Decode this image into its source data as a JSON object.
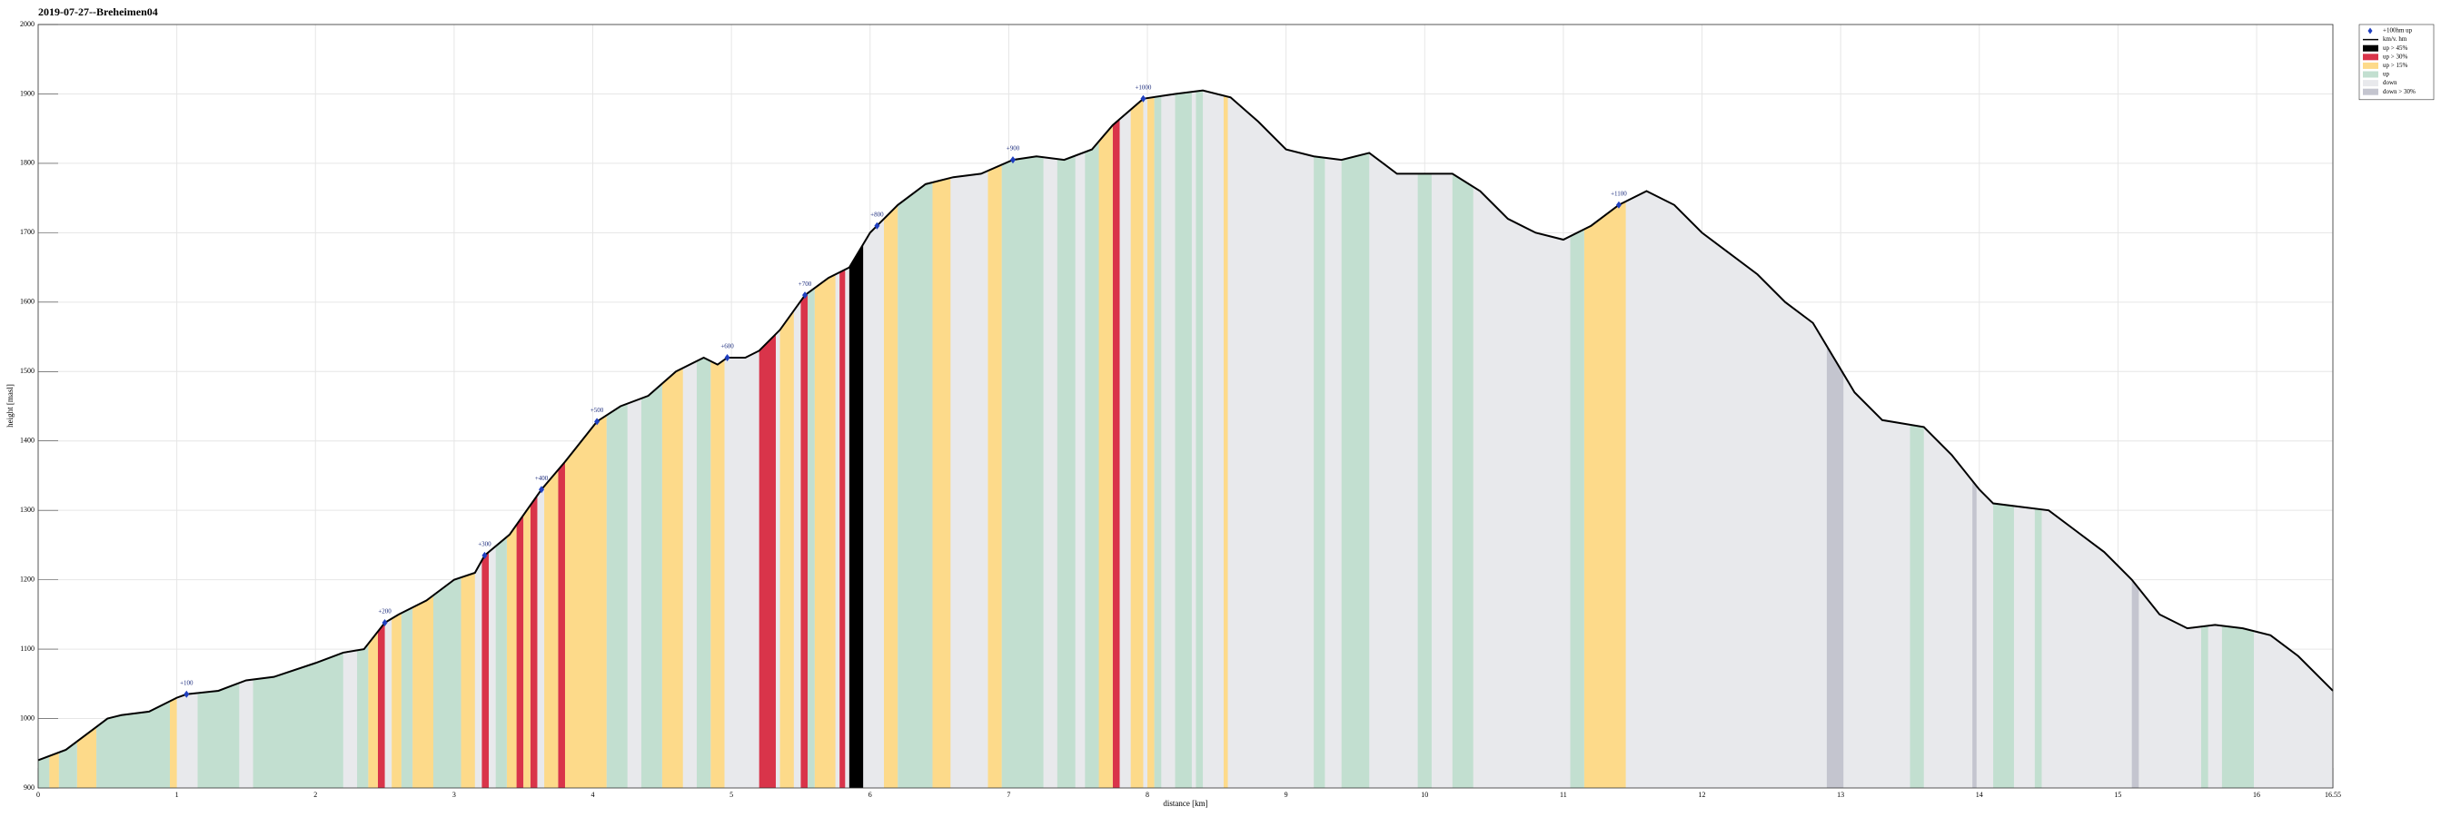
{
  "chart_data": {
    "type": "area",
    "title": "2019-07-27--Breheimen04",
    "x_label": "distance [km]",
    "y_label": "height [masl]",
    "xlim": [
      0,
      16.55
    ],
    "ylim": [
      900,
      2000
    ],
    "xticks": [
      0,
      1,
      2,
      3,
      4,
      5,
      6,
      7,
      8,
      9,
      10,
      11,
      12,
      13,
      14,
      15,
      16,
      16.55
    ],
    "yticks": [
      900,
      1000,
      1100,
      1200,
      1300,
      1400,
      1500,
      1600,
      1700,
      1800,
      1900,
      2000
    ],
    "grid": true,
    "legend_position": "upper right",
    "profile": {
      "name": "km/v. hm",
      "color": "#000000",
      "x": [
        0,
        0.2,
        0.4,
        0.5,
        0.6,
        0.8,
        1.0,
        1.07,
        1.3,
        1.5,
        1.7,
        2.0,
        2.2,
        2.35,
        2.5,
        2.6,
        2.8,
        3.0,
        3.15,
        3.22,
        3.4,
        3.63,
        3.8,
        4.03,
        4.2,
        4.4,
        4.6,
        4.8,
        4.9,
        4.97,
        5.1,
        5.2,
        5.35,
        5.53,
        5.7,
        5.85,
        6.0,
        6.05,
        6.2,
        6.4,
        6.6,
        6.8,
        7.03,
        7.2,
        7.4,
        7.6,
        7.75,
        7.97,
        8.2,
        8.4,
        8.6,
        8.8,
        9.0,
        9.2,
        9.4,
        9.6,
        9.8,
        10.0,
        10.2,
        10.4,
        10.6,
        10.8,
        11.0,
        11.2,
        11.4,
        11.6,
        11.8,
        12.0,
        12.2,
        12.4,
        12.6,
        12.8,
        12.95,
        13.1,
        13.3,
        13.6,
        13.8,
        14.0,
        14.1,
        14.3,
        14.5,
        14.7,
        14.9,
        15.1,
        15.3,
        15.5,
        15.7,
        15.9,
        16.1,
        16.3,
        16.55
      ],
      "height": [
        940,
        955,
        985,
        1000,
        1005,
        1010,
        1030,
        1035,
        1040,
        1055,
        1060,
        1080,
        1095,
        1100,
        1138,
        1150,
        1170,
        1200,
        1210,
        1235,
        1265,
        1330,
        1370,
        1428,
        1450,
        1465,
        1500,
        1520,
        1510,
        1520,
        1520,
        1530,
        1560,
        1610,
        1635,
        1650,
        1700,
        1710,
        1740,
        1770,
        1780,
        1785,
        1805,
        1810,
        1805,
        1820,
        1855,
        1893,
        1900,
        1905,
        1895,
        1860,
        1820,
        1810,
        1805,
        1815,
        1785,
        1785,
        1785,
        1760,
        1720,
        1700,
        1690,
        1710,
        1740,
        1760,
        1740,
        1700,
        1670,
        1640,
        1600,
        1570,
        1520,
        1470,
        1430,
        1420,
        1380,
        1330,
        1310,
        1305,
        1300,
        1270,
        1240,
        1200,
        1150,
        1130,
        1135,
        1130,
        1120,
        1090,
        1040
      ]
    },
    "markers": {
      "name": "+100hm up",
      "color": "#1f3fbf",
      "x": [
        1.07,
        2.5,
        3.22,
        3.63,
        4.03,
        4.97,
        5.53,
        6.05,
        7.03,
        7.97,
        11.4
      ],
      "height": [
        1035,
        1138,
        1235,
        1330,
        1428,
        1520,
        1610,
        1710,
        1805,
        1893,
        1740
      ],
      "labels": [
        "+100",
        "+200",
        "+300",
        "+400",
        "+500",
        "+600",
        "+700",
        "+800",
        "+900",
        "+1000",
        "+1100"
      ]
    },
    "series": [
      {
        "name": "up > 45%",
        "color": "#000000",
        "from": [
          5.85
        ],
        "to": [
          5.95
        ]
      },
      {
        "name": "up > 30%",
        "color": "#d9344a",
        "from": [
          2.45,
          3.2,
          3.45,
          3.55,
          3.75,
          5.2,
          5.5,
          5.78,
          7.75
        ],
        "to": [
          2.5,
          3.25,
          3.5,
          3.6,
          3.8,
          5.32,
          5.55,
          5.82,
          7.8
        ]
      },
      {
        "name": "up > 15%",
        "color": "#fdda8a",
        "from": [
          0.08,
          0.28,
          0.95,
          2.38,
          2.55,
          2.7,
          3.05,
          3.38,
          3.5,
          3.65,
          3.8,
          4.5,
          4.85,
          5.35,
          5.6,
          6.1,
          6.45,
          6.85,
          7.6,
          7.88,
          8.0,
          8.55,
          11.15
        ],
        "to": [
          0.15,
          0.42,
          1.0,
          2.45,
          2.62,
          2.85,
          3.15,
          3.45,
          3.55,
          3.75,
          4.1,
          4.65,
          4.95,
          5.45,
          5.75,
          6.2,
          6.58,
          6.95,
          7.75,
          7.97,
          8.05,
          8.58,
          11.45
        ]
      },
      {
        "name": "up",
        "color": "#c2dfd0",
        "from": [
          0,
          0.15,
          0.42,
          1.15,
          1.55,
          2.3,
          2.62,
          2.85,
          3.3,
          4.1,
          4.35,
          4.75,
          5.55,
          6.2,
          6.95,
          7.35,
          7.55,
          8.05,
          8.2,
          8.35,
          9.2,
          9.4,
          9.95,
          10.2,
          11.05,
          13.5,
          14.1,
          14.4,
          15.6,
          15.75
        ],
        "to": [
          0.08,
          0.28,
          0.95,
          1.45,
          2.2,
          2.38,
          2.7,
          3.05,
          3.38,
          4.25,
          4.5,
          4.85,
          5.6,
          6.45,
          7.25,
          7.48,
          7.65,
          8.1,
          8.32,
          8.4,
          9.28,
          9.6,
          10.05,
          10.35,
          11.15,
          13.6,
          14.25,
          14.45,
          15.65,
          15.98
        ]
      },
      {
        "name": "down",
        "color": "#e8e9ec",
        "from": [],
        "to": []
      },
      {
        "name": "down > 30%",
        "color": "#c4c5cf",
        "from": [
          12.9,
          13.95,
          15.1
        ],
        "to": [
          13.02,
          13.98,
          15.15
        ]
      }
    ]
  }
}
